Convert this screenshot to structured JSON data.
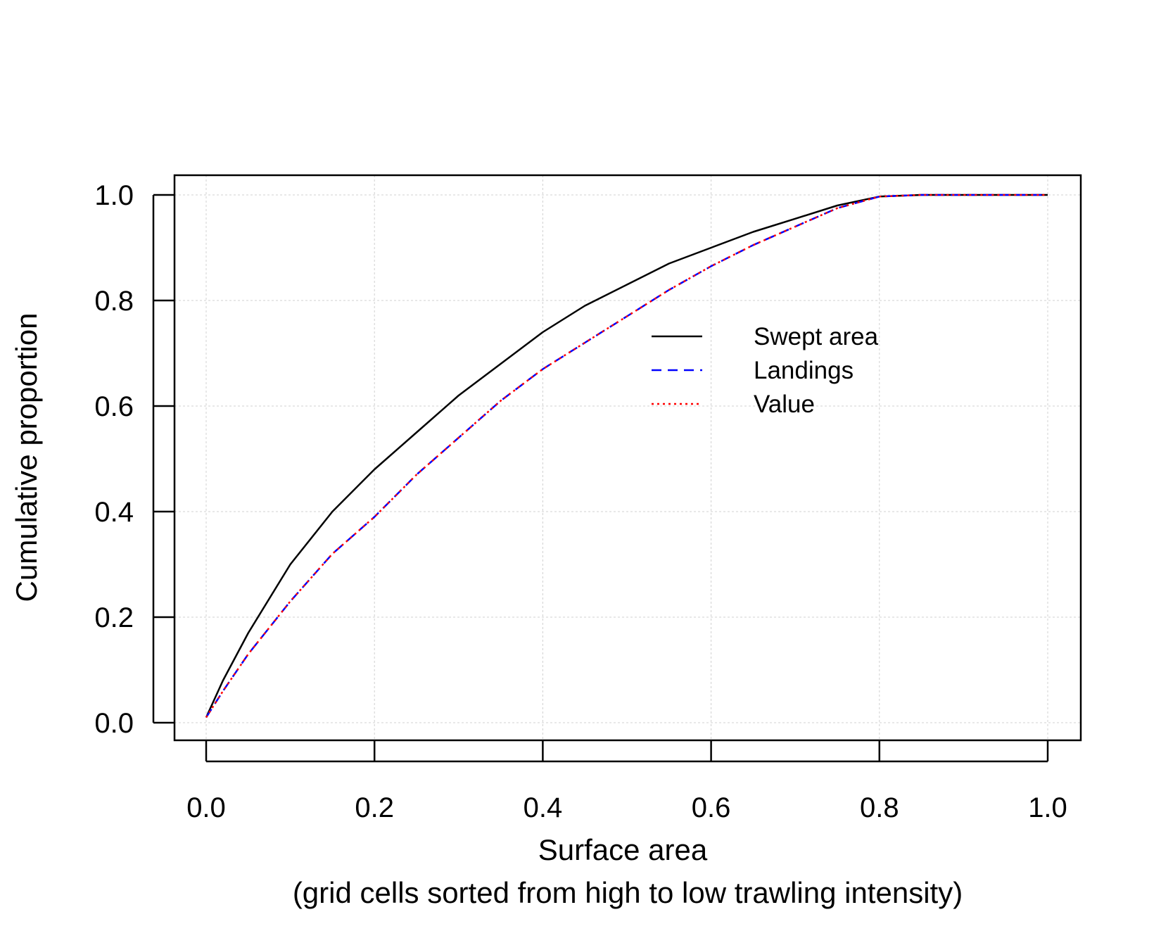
{
  "chart_data": {
    "type": "line",
    "title": "",
    "xlabel": "Surface area",
    "xlabel_sub": "(grid cells sorted from high to low trawling intensity)",
    "ylabel": "Cumulative proportion",
    "xlim": [
      0.0,
      1.0
    ],
    "ylim": [
      0.0,
      1.0
    ],
    "x_ticks": [
      "0.0",
      "0.2",
      "0.4",
      "0.6",
      "0.8",
      "1.0"
    ],
    "y_ticks": [
      "0.0",
      "0.2",
      "0.4",
      "0.6",
      "0.8",
      "1.0"
    ],
    "grid": true,
    "legend_position": "upper-center-right",
    "series": [
      {
        "name": "Swept area",
        "color": "#000000",
        "dash": "solid",
        "x": [
          0.0,
          0.02,
          0.05,
          0.1,
          0.15,
          0.2,
          0.25,
          0.3,
          0.35,
          0.4,
          0.45,
          0.5,
          0.55,
          0.6,
          0.65,
          0.7,
          0.75,
          0.8,
          0.85,
          0.9,
          1.0
        ],
        "y": [
          0.01,
          0.08,
          0.17,
          0.3,
          0.4,
          0.48,
          0.55,
          0.62,
          0.68,
          0.74,
          0.79,
          0.83,
          0.87,
          0.9,
          0.93,
          0.955,
          0.98,
          0.997,
          1.0,
          1.0,
          1.0
        ]
      },
      {
        "name": "Landings",
        "color": "#0000ff",
        "dash": "dashed",
        "x": [
          0.0,
          0.02,
          0.05,
          0.1,
          0.15,
          0.2,
          0.25,
          0.3,
          0.35,
          0.4,
          0.45,
          0.5,
          0.55,
          0.6,
          0.65,
          0.7,
          0.75,
          0.8,
          0.85,
          0.9,
          1.0
        ],
        "y": [
          0.01,
          0.06,
          0.13,
          0.23,
          0.32,
          0.39,
          0.47,
          0.54,
          0.61,
          0.67,
          0.72,
          0.77,
          0.82,
          0.865,
          0.905,
          0.94,
          0.975,
          0.997,
          1.0,
          1.0,
          1.0
        ]
      },
      {
        "name": "Value",
        "color": "#ff0000",
        "dash": "dotted",
        "x": [
          0.0,
          0.02,
          0.05,
          0.1,
          0.15,
          0.2,
          0.25,
          0.3,
          0.35,
          0.4,
          0.45,
          0.5,
          0.55,
          0.6,
          0.65,
          0.7,
          0.75,
          0.8,
          0.85,
          0.9,
          1.0
        ],
        "y": [
          0.01,
          0.06,
          0.13,
          0.23,
          0.32,
          0.39,
          0.47,
          0.54,
          0.61,
          0.67,
          0.72,
          0.77,
          0.82,
          0.865,
          0.905,
          0.94,
          0.975,
          0.997,
          1.0,
          1.0,
          1.0
        ]
      }
    ]
  }
}
